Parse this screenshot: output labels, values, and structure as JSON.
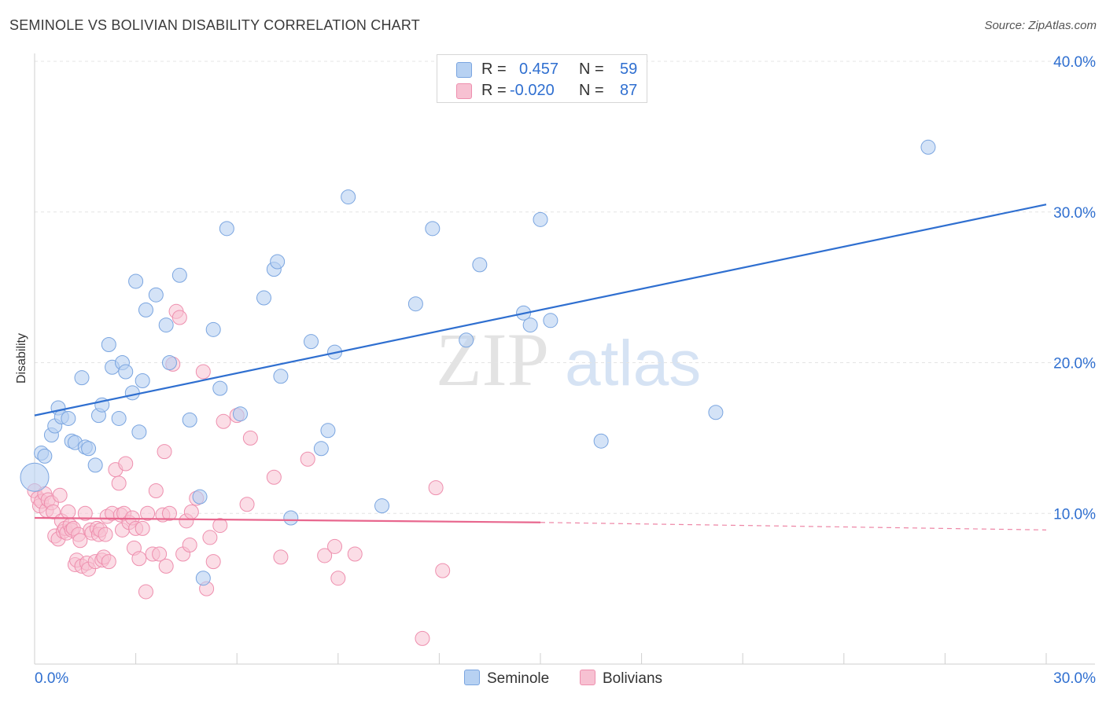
{
  "header": {
    "title": "SEMINOLE VS BOLIVIAN DISABILITY CORRELATION CHART",
    "source": "Source: ZipAtlas.com"
  },
  "watermark": {
    "zip": "ZIP",
    "atlas": "atlas"
  },
  "legend": {
    "rows": [
      {
        "r_label": "R =",
        "r_value": "0.457",
        "n_label": "N =",
        "n_value": "59",
        "color": "#b7d1f2"
      },
      {
        "r_label": "R =",
        "r_value": "-0.020",
        "n_label": "N =",
        "n_value": "87",
        "color": "#f7c1d2"
      }
    ]
  },
  "bottom_legend": {
    "seminole": "Seminole",
    "bolivians": "Bolivians"
  },
  "colors": {
    "seminole_fill": "#b7d1f2",
    "seminole_stroke": "#7aa5e0",
    "seminole_line": "#2f6fd0",
    "bolivians_fill": "#f7c1d2",
    "bolivians_stroke": "#ee8fae",
    "bolivians_line": "#e8678e",
    "tick_label": "#2f6fd0",
    "grid": "#e4e4e4"
  },
  "chart_data": {
    "type": "scatter",
    "title": "SEMINOLE VS BOLIVIAN DISABILITY CORRELATION CHART",
    "xlabel": "",
    "ylabel": "Disability",
    "xlim": [
      0,
      30
    ],
    "ylim": [
      0,
      40
    ],
    "x_tick_labels": [
      "0.0%",
      "30.0%"
    ],
    "y_ticks": [
      10,
      20,
      30,
      40
    ],
    "y_tick_labels": [
      "10.0%",
      "20.0%",
      "30.0%",
      "40.0%"
    ],
    "grid": "horizontal dashed",
    "series": [
      {
        "name": "Seminole",
        "points": [
          [
            0.0,
            12.4
          ],
          [
            0.2,
            14.0
          ],
          [
            0.3,
            13.8
          ],
          [
            0.5,
            15.2
          ],
          [
            0.6,
            15.8
          ],
          [
            0.7,
            17.0
          ],
          [
            0.8,
            16.4
          ],
          [
            1.0,
            16.3
          ],
          [
            1.1,
            14.8
          ],
          [
            1.2,
            14.7
          ],
          [
            1.4,
            19.0
          ],
          [
            1.5,
            14.4
          ],
          [
            1.6,
            14.3
          ],
          [
            1.8,
            13.2
          ],
          [
            1.9,
            16.5
          ],
          [
            2.0,
            17.2
          ],
          [
            2.2,
            21.2
          ],
          [
            2.3,
            19.7
          ],
          [
            2.5,
            16.3
          ],
          [
            2.6,
            20.0
          ],
          [
            2.7,
            19.4
          ],
          [
            2.9,
            18.0
          ],
          [
            3.0,
            25.4
          ],
          [
            3.1,
            15.4
          ],
          [
            3.2,
            18.8
          ],
          [
            3.3,
            23.5
          ],
          [
            3.6,
            24.5
          ],
          [
            3.9,
            22.5
          ],
          [
            4.0,
            20.0
          ],
          [
            4.3,
            25.8
          ],
          [
            4.6,
            16.2
          ],
          [
            4.9,
            11.1
          ],
          [
            5.0,
            5.7
          ],
          [
            5.3,
            22.2
          ],
          [
            5.5,
            18.3
          ],
          [
            5.7,
            28.9
          ],
          [
            6.1,
            16.6
          ],
          [
            6.8,
            24.3
          ],
          [
            7.1,
            26.2
          ],
          [
            7.2,
            26.7
          ],
          [
            7.3,
            19.1
          ],
          [
            7.6,
            9.7
          ],
          [
            8.2,
            21.4
          ],
          [
            8.5,
            14.3
          ],
          [
            8.7,
            15.5
          ],
          [
            8.9,
            20.7
          ],
          [
            9.3,
            31.0
          ],
          [
            10.3,
            10.5
          ],
          [
            11.3,
            23.9
          ],
          [
            11.8,
            28.9
          ],
          [
            12.8,
            21.5
          ],
          [
            13.2,
            26.5
          ],
          [
            14.5,
            23.3
          ],
          [
            14.7,
            22.5
          ],
          [
            15.0,
            29.5
          ],
          [
            15.3,
            22.8
          ],
          [
            16.8,
            14.8
          ],
          [
            20.2,
            16.7
          ],
          [
            26.5,
            34.3
          ]
        ],
        "trend": {
          "x0": 0,
          "y0": 16.5,
          "x1": 30,
          "y1": 30.5
        }
      },
      {
        "name": "Bolivians",
        "points": [
          [
            0.0,
            11.5
          ],
          [
            0.1,
            11.0
          ],
          [
            0.15,
            10.5
          ],
          [
            0.2,
            10.8
          ],
          [
            0.3,
            11.3
          ],
          [
            0.35,
            10.2
          ],
          [
            0.4,
            10.9
          ],
          [
            0.5,
            10.7
          ],
          [
            0.55,
            10.1
          ],
          [
            0.6,
            8.5
          ],
          [
            0.7,
            8.3
          ],
          [
            0.75,
            11.2
          ],
          [
            0.8,
            9.5
          ],
          [
            0.85,
            8.8
          ],
          [
            0.9,
            9.0
          ],
          [
            0.95,
            8.7
          ],
          [
            1.0,
            10.1
          ],
          [
            1.05,
            9.2
          ],
          [
            1.1,
            8.9
          ],
          [
            1.15,
            9.0
          ],
          [
            1.2,
            6.6
          ],
          [
            1.25,
            6.9
          ],
          [
            1.3,
            8.6
          ],
          [
            1.35,
            8.2
          ],
          [
            1.4,
            6.5
          ],
          [
            1.5,
            10.0
          ],
          [
            1.55,
            6.7
          ],
          [
            1.6,
            6.3
          ],
          [
            1.65,
            8.9
          ],
          [
            1.7,
            8.7
          ],
          [
            1.8,
            6.8
          ],
          [
            1.85,
            9.0
          ],
          [
            1.9,
            8.6
          ],
          [
            1.95,
            8.9
          ],
          [
            2.0,
            6.9
          ],
          [
            2.05,
            7.1
          ],
          [
            2.1,
            8.6
          ],
          [
            2.15,
            9.8
          ],
          [
            2.2,
            6.8
          ],
          [
            2.3,
            10.0
          ],
          [
            2.4,
            12.9
          ],
          [
            2.5,
            12.0
          ],
          [
            2.55,
            9.9
          ],
          [
            2.6,
            8.9
          ],
          [
            2.65,
            10.0
          ],
          [
            2.7,
            13.3
          ],
          [
            2.8,
            9.4
          ],
          [
            2.9,
            9.7
          ],
          [
            2.95,
            7.7
          ],
          [
            3.0,
            9.0
          ],
          [
            3.1,
            7.0
          ],
          [
            3.2,
            9.0
          ],
          [
            3.3,
            4.8
          ],
          [
            3.35,
            10.0
          ],
          [
            3.5,
            7.3
          ],
          [
            3.6,
            11.5
          ],
          [
            3.7,
            7.3
          ],
          [
            3.8,
            9.9
          ],
          [
            3.85,
            14.1
          ],
          [
            3.9,
            6.5
          ],
          [
            4.0,
            10.0
          ],
          [
            4.1,
            19.9
          ],
          [
            4.2,
            23.4
          ],
          [
            4.3,
            23.0
          ],
          [
            4.4,
            7.3
          ],
          [
            4.5,
            9.5
          ],
          [
            4.6,
            7.9
          ],
          [
            4.65,
            10.1
          ],
          [
            4.8,
            11.0
          ],
          [
            5.0,
            19.4
          ],
          [
            5.1,
            5.0
          ],
          [
            5.2,
            8.4
          ],
          [
            5.3,
            6.8
          ],
          [
            5.5,
            9.2
          ],
          [
            5.6,
            16.1
          ],
          [
            6.0,
            16.5
          ],
          [
            6.3,
            10.6
          ],
          [
            6.4,
            15.0
          ],
          [
            7.1,
            12.4
          ],
          [
            7.3,
            7.1
          ],
          [
            8.1,
            13.6
          ],
          [
            8.6,
            7.2
          ],
          [
            8.9,
            7.8
          ],
          [
            9.0,
            5.7
          ],
          [
            9.5,
            7.3
          ],
          [
            11.5,
            1.7
          ],
          [
            11.9,
            11.7
          ],
          [
            12.1,
            6.2
          ]
        ],
        "trend": {
          "x0": 0,
          "y0": 9.7,
          "x1": 15,
          "y1": 9.4,
          "dashed_to_x": 30,
          "dashed_to_y": 8.9
        }
      }
    ]
  }
}
